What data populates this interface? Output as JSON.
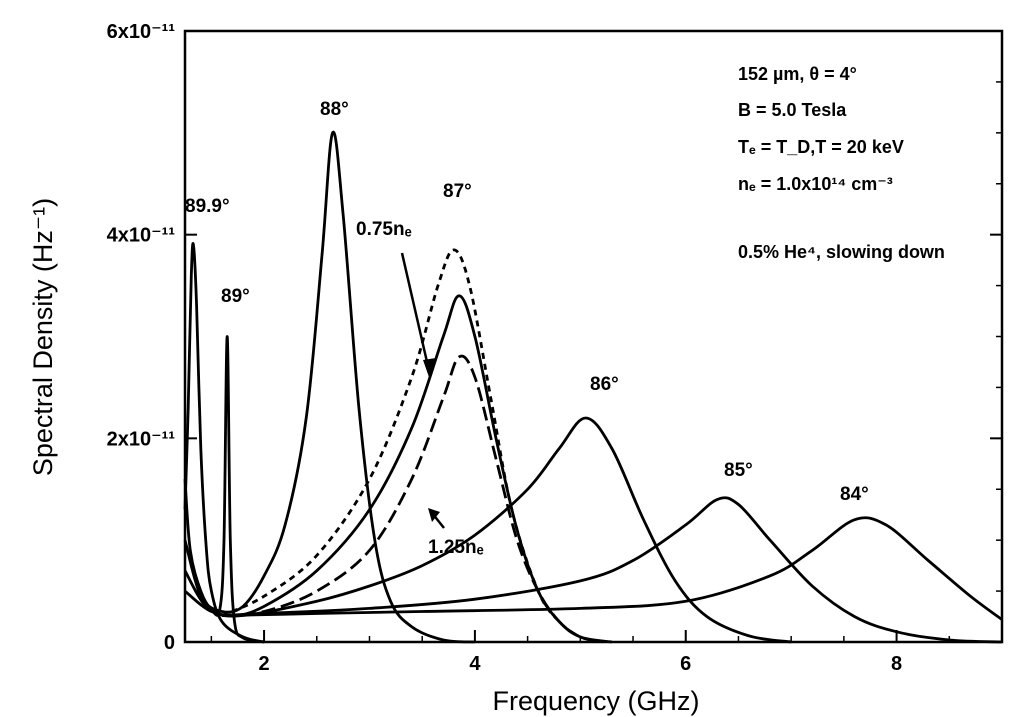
{
  "chart_data": {
    "type": "line",
    "xlabel": "Frequency (GHz)",
    "ylabel": "Spectral Density (Hz⁻¹)",
    "xlim": [
      1.25,
      9.0
    ],
    "ylim": [
      0,
      6e-11
    ],
    "x_ticks": [
      {
        "value": 2,
        "label": "2"
      },
      {
        "value": 4,
        "label": "4"
      },
      {
        "value": 6,
        "label": "6"
      },
      {
        "value": 8,
        "label": "8"
      }
    ],
    "y_ticks": [
      {
        "value": 0,
        "label": "0"
      },
      {
        "value": 2e-11,
        "label": "2x10⁻¹¹"
      },
      {
        "value": 4e-11,
        "label": "4x10⁻¹¹"
      },
      {
        "value": 6e-11,
        "label": "6x10⁻¹¹"
      }
    ],
    "annotations": [
      "152 µm, θ = 4°",
      "B = 5.0 Tesla",
      "Tₑ = T_D,T = 20 keV",
      "nₑ = 1.0x10¹⁴ cm⁻³",
      "0.5% He⁴, slowing down"
    ],
    "series": [
      {
        "name": "89.9°",
        "style": "solid",
        "points": [
          [
            1.25,
            1.3e-11
          ],
          [
            1.28,
            2.3e-11
          ],
          [
            1.31,
            3.6e-11
          ],
          [
            1.33,
            3.9e-11
          ],
          [
            1.36,
            3.3e-11
          ],
          [
            1.4,
            1.9e-11
          ],
          [
            1.45,
            9.5e-12
          ],
          [
            1.5,
            5e-12
          ],
          [
            1.6,
            2e-12
          ],
          [
            1.8,
            5e-13
          ],
          [
            2.0,
            0
          ]
        ]
      },
      {
        "name": "89°",
        "style": "solid",
        "points": [
          [
            1.25,
            1.6e-11
          ],
          [
            1.3,
            9e-12
          ],
          [
            1.4,
            5e-12
          ],
          [
            1.5,
            3.2e-12
          ],
          [
            1.58,
            3.2e-12
          ],
          [
            1.62,
            1e-11
          ],
          [
            1.65,
            3e-11
          ],
          [
            1.68,
            1e-11
          ],
          [
            1.72,
            2e-12
          ],
          [
            1.8,
            4e-13
          ],
          [
            2.0,
            0
          ]
        ]
      },
      {
        "name": "88°",
        "style": "solid",
        "points": [
          [
            1.25,
            1e-11
          ],
          [
            1.4,
            4.5e-12
          ],
          [
            1.6,
            3e-12
          ],
          [
            1.8,
            3.5e-12
          ],
          [
            2.0,
            6.5e-12
          ],
          [
            2.2,
            1.15e-11
          ],
          [
            2.4,
            2.2e-11
          ],
          [
            2.55,
            3.8e-11
          ],
          [
            2.65,
            5e-11
          ],
          [
            2.75,
            4.2e-11
          ],
          [
            2.9,
            2.3e-11
          ],
          [
            3.05,
            1e-11
          ],
          [
            3.2,
            4e-12
          ],
          [
            3.4,
            1.5e-12
          ],
          [
            3.7,
            2e-13
          ],
          [
            4.0,
            0
          ]
        ]
      },
      {
        "name": "87°",
        "style": "solid",
        "points": [
          [
            1.25,
            7e-12
          ],
          [
            1.45,
            3.5e-12
          ],
          [
            1.7,
            2.6e-12
          ],
          [
            2.0,
            3.5e-12
          ],
          [
            2.5,
            7e-12
          ],
          [
            3.0,
            1.3e-11
          ],
          [
            3.4,
            2.1e-11
          ],
          [
            3.7,
            3e-11
          ],
          [
            3.85,
            3.4e-11
          ],
          [
            4.0,
            3e-11
          ],
          [
            4.2,
            2e-11
          ],
          [
            4.4,
            1.1e-11
          ],
          [
            4.6,
            5e-12
          ],
          [
            4.8,
            2e-12
          ],
          [
            5.0,
            5e-13
          ],
          [
            5.3,
            0
          ]
        ]
      },
      {
        "name": "0.75nₑ",
        "style": "dashed",
        "points": [
          [
            1.6,
            2.6e-12
          ],
          [
            2.0,
            4.5e-12
          ],
          [
            2.5,
            8.5e-12
          ],
          [
            3.0,
            1.6e-11
          ],
          [
            3.4,
            2.6e-11
          ],
          [
            3.65,
            3.5e-11
          ],
          [
            3.8,
            3.85e-11
          ],
          [
            3.95,
            3.5e-11
          ],
          [
            4.15,
            2.4e-11
          ],
          [
            4.35,
            1.3e-11
          ],
          [
            4.6,
            5e-12
          ],
          [
            4.8,
            2e-12
          ],
          [
            5.0,
            5e-13
          ],
          [
            5.2,
            0
          ]
        ]
      },
      {
        "name": "1.25nₑ",
        "style": "dashed",
        "points": [
          [
            1.6,
            2.6e-12
          ],
          [
            2.0,
            3e-12
          ],
          [
            2.5,
            5e-12
          ],
          [
            3.0,
            9e-12
          ],
          [
            3.4,
            1.6e-11
          ],
          [
            3.7,
            2.4e-11
          ],
          [
            3.85,
            2.8e-11
          ],
          [
            4.0,
            2.6e-11
          ],
          [
            4.2,
            1.8e-11
          ],
          [
            4.4,
            1e-11
          ],
          [
            4.6,
            5e-12
          ],
          [
            4.8,
            2e-12
          ],
          [
            5.0,
            5e-13
          ],
          [
            5.2,
            0
          ]
        ]
      },
      {
        "name": "86°",
        "style": "solid",
        "points": [
          [
            1.25,
            5e-12
          ],
          [
            1.5,
            3e-12
          ],
          [
            1.8,
            2.6e-12
          ],
          [
            2.5,
            4e-12
          ],
          [
            3.0,
            5.5e-12
          ],
          [
            3.5,
            7.5e-12
          ],
          [
            4.0,
            1.05e-11
          ],
          [
            4.5,
            1.5e-11
          ],
          [
            4.8,
            1.9e-11
          ],
          [
            5.05,
            2.2e-11
          ],
          [
            5.3,
            1.9e-11
          ],
          [
            5.6,
            1.2e-11
          ],
          [
            5.9,
            6e-12
          ],
          [
            6.2,
            2.5e-12
          ],
          [
            6.6,
            6e-13
          ],
          [
            7.0,
            0
          ]
        ]
      },
      {
        "name": "85°",
        "style": "solid",
        "points": [
          [
            1.6,
            2.6e-12
          ],
          [
            2.0,
            2.8e-12
          ],
          [
            3.0,
            3.3e-12
          ],
          [
            4.0,
            4.2e-12
          ],
          [
            5.0,
            6e-12
          ],
          [
            5.5,
            8e-12
          ],
          [
            6.0,
            1.15e-11
          ],
          [
            6.3,
            1.4e-11
          ],
          [
            6.5,
            1.35e-11
          ],
          [
            6.8,
            1e-11
          ],
          [
            7.2,
            5.5e-12
          ],
          [
            7.6,
            2.5e-12
          ],
          [
            8.0,
            1e-12
          ],
          [
            8.5,
            2e-13
          ],
          [
            9.0,
            0
          ]
        ]
      },
      {
        "name": "84°",
        "style": "solid",
        "points": [
          [
            1.6,
            2.6e-12
          ],
          [
            2.5,
            2.8e-12
          ],
          [
            3.5,
            3e-12
          ],
          [
            5.0,
            3.3e-12
          ],
          [
            6.0,
            4e-12
          ],
          [
            6.8,
            6.5e-12
          ],
          [
            7.2,
            9e-12
          ],
          [
            7.6,
            1.2e-11
          ],
          [
            7.9,
            1.15e-11
          ],
          [
            8.3,
            8e-12
          ],
          [
            8.7,
            4.5e-12
          ],
          [
            9.0,
            2.2e-12
          ]
        ]
      }
    ]
  }
}
